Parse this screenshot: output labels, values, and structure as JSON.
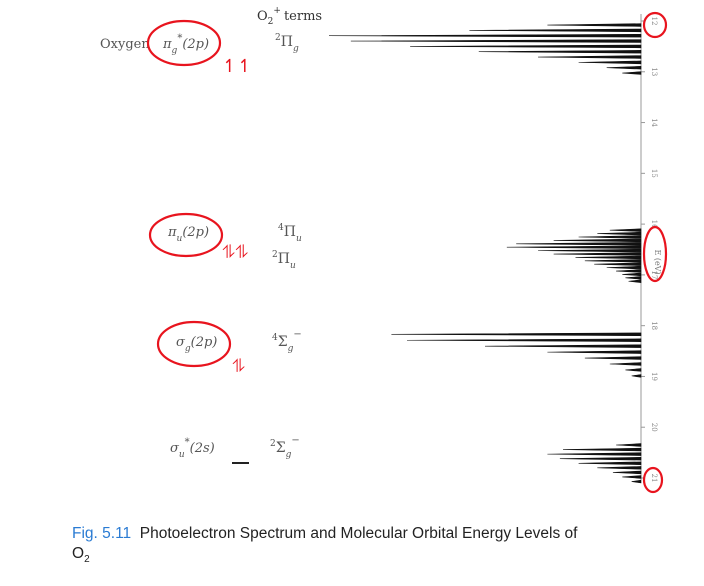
{
  "header": {
    "terms_base": "O",
    "terms_sub": "2",
    "terms_sup": "+",
    "terms_word": "terms",
    "molecule_label": "Oxygen"
  },
  "orbitals": [
    {
      "sym": "π",
      "sub": "g",
      "star": "*",
      "tail": "(2p)",
      "term_sup": "2",
      "term": "Π",
      "term_sub": "g",
      "term_tail": "",
      "electrons": "↿↿"
    },
    {
      "sym": "π",
      "sub": "u",
      "star": "",
      "tail": "(2p)",
      "term_sup": "4",
      "term": "Π",
      "term_sub": "u",
      "term_tail": "",
      "term2_sup": "2",
      "term2": "Π",
      "term2_sub": "u",
      "electrons": "⥮⥮"
    },
    {
      "sym": "σ",
      "sub": "g",
      "star": "",
      "tail": "(2p)",
      "term_sup": "4",
      "term": "Σ",
      "term_sub": "g",
      "term_tail": "−",
      "electrons": "⥮"
    },
    {
      "sym": "σ",
      "sub": "u",
      "star": "*",
      "tail": "(2s)",
      "term_sup": "2",
      "term": "Σ",
      "term_sub": "g",
      "term_tail": "−",
      "electrons": "—"
    }
  ],
  "axis": {
    "label": "E (eV)",
    "ticks": [
      "12",
      "13",
      "14",
      "15",
      "16",
      "17",
      "18",
      "19",
      "20",
      "21"
    ]
  },
  "spectrum": {
    "bands": [
      {
        "name": "pi-g-2p band",
        "start_ev": 12.08,
        "spacing_ev": 0.105,
        "intensities": [
          0.3,
          0.55,
          1.0,
          0.93,
          0.74,
          0.52,
          0.33,
          0.2,
          0.11,
          0.06
        ]
      },
      {
        "name": "pi-u-2p bands",
        "start_ev": 16.12,
        "spacing_ev": 0.067,
        "intensities": [
          0.1,
          0.14,
          0.2,
          0.28,
          0.4,
          0.43,
          0.33,
          0.28,
          0.21,
          0.18,
          0.15,
          0.11,
          0.08,
          0.06,
          0.05,
          0.04
        ]
      },
      {
        "name": "sigma-g-2p band",
        "start_ev": 18.17,
        "spacing_ev": 0.117,
        "intensities": [
          0.8,
          0.75,
          0.5,
          0.3,
          0.18,
          0.1,
          0.05,
          0.03
        ]
      },
      {
        "name": "sigma-u-2s band",
        "start_ev": 20.35,
        "spacing_ev": 0.09,
        "intensities": [
          0.08,
          0.25,
          0.3,
          0.26,
          0.2,
          0.14,
          0.09,
          0.06,
          0.03
        ]
      }
    ]
  },
  "caption": {
    "fig_label": "Fig. 5.11",
    "text": "Photoelectron Spectrum and Molecular Orbital Energy Levels of",
    "subject_base": "O",
    "subject_sub": "2"
  },
  "annotation_color": "#e8141e"
}
